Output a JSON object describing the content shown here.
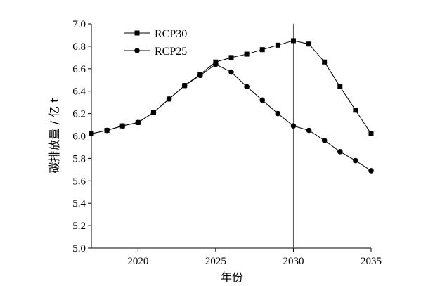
{
  "chart_data": {
    "type": "line",
    "xlabel": "年份",
    "ylabel": "碳排放量 / 亿 t",
    "xlim": [
      2017,
      2035
    ],
    "ylim": [
      5.0,
      7.0
    ],
    "x_ticks": [
      2020,
      2025,
      2030,
      2035
    ],
    "x_tick_labels": [
      "2020",
      "2025",
      "2030",
      "2035"
    ],
    "y_ticks": [
      5.0,
      5.2,
      5.4,
      5.6,
      5.8,
      6.0,
      6.2,
      6.4,
      6.6,
      6.8,
      7.0
    ],
    "y_tick_labels": [
      "5.0",
      "5.2",
      "5.4",
      "5.6",
      "5.8",
      "6.0",
      "6.2",
      "6.4",
      "6.6",
      "6.8",
      "7.0"
    ],
    "reference_line_x": 2030,
    "grid": false,
    "legend_position": "top-left",
    "x": [
      2017,
      2018,
      2019,
      2020,
      2021,
      2022,
      2023,
      2024,
      2025,
      2026,
      2027,
      2028,
      2029,
      2030,
      2031,
      2032,
      2033,
      2034,
      2035
    ],
    "series": [
      {
        "name": "RCP30",
        "marker": "square",
        "color": "#000000",
        "values": [
          6.02,
          6.05,
          6.09,
          6.12,
          6.21,
          6.33,
          6.45,
          6.55,
          6.66,
          6.7,
          6.73,
          6.77,
          6.81,
          6.85,
          6.82,
          6.66,
          6.44,
          6.23,
          6.02
        ]
      },
      {
        "name": "RCP25",
        "marker": "circle",
        "color": "#000000",
        "values": [
          6.02,
          6.05,
          6.09,
          6.12,
          6.21,
          6.33,
          6.45,
          6.54,
          6.64,
          6.57,
          6.44,
          6.32,
          6.2,
          6.09,
          6.05,
          5.96,
          5.86,
          5.78,
          5.69
        ]
      }
    ]
  }
}
